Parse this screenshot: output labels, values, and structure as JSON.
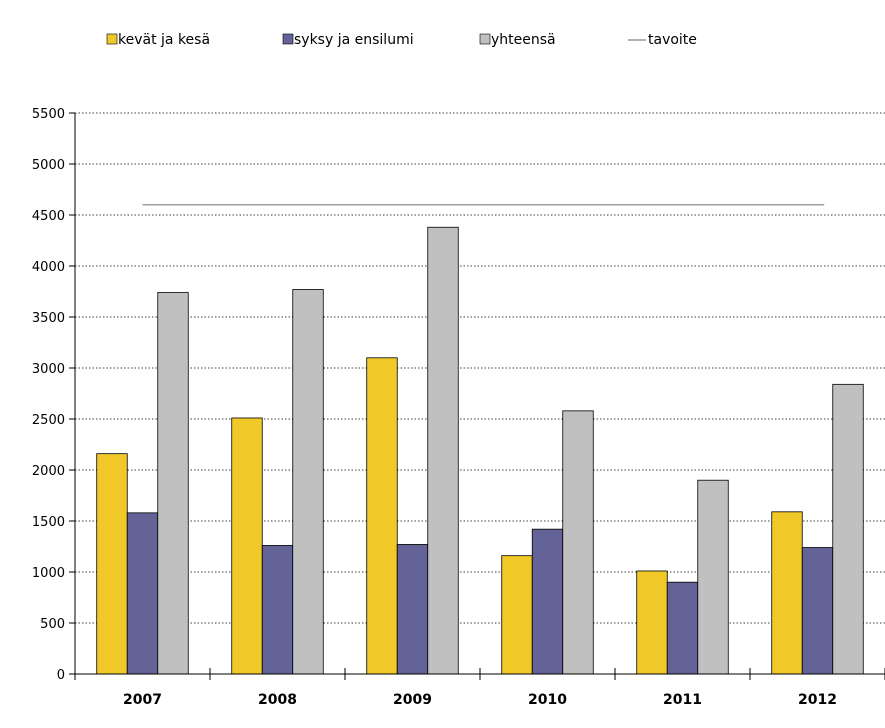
{
  "chart_data": {
    "type": "bar",
    "categories": [
      "2007",
      "2008",
      "2009",
      "2010",
      "2011",
      "2012"
    ],
    "series": [
      {
        "name": "kevät ja kesä",
        "values": [
          2160,
          2510,
          3100,
          1160,
          1010,
          1590
        ],
        "color": "#f0c828"
      },
      {
        "name": "syksy ja ensilumi",
        "values": [
          1580,
          1260,
          1270,
          1420,
          900,
          1240
        ],
        "color": "#636397"
      },
      {
        "name": "yhteensä",
        "values": [
          3740,
          3770,
          4380,
          2580,
          1900,
          2840
        ],
        "color": "#c0c0c0"
      }
    ],
    "target_line": {
      "name": "tavoite",
      "value": 4600,
      "color": "#808080"
    },
    "ylim": [
      0,
      5500
    ],
    "yticks": [
      0,
      500,
      1000,
      1500,
      2000,
      2500,
      3000,
      3500,
      4000,
      4500,
      5000,
      5500
    ],
    "grid": true,
    "legend_position": "top"
  }
}
